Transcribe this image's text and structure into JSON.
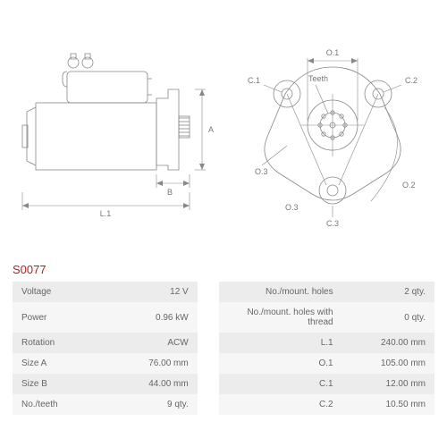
{
  "part_number": "S0077",
  "diagram": {
    "side_view": {
      "dim_labels": {
        "A": "A",
        "B": "B",
        "L1": "L.1"
      }
    },
    "front_view": {
      "dim_labels": {
        "O1": "O.1",
        "O2": "O.2",
        "O3": "O.3",
        "O3b": "O.3",
        "C1": "C.1",
        "C2": "C.2",
        "C3": "C.3",
        "teeth": "Teeth"
      }
    },
    "line_color": "#888888",
    "text_color": "#777777"
  },
  "specs": {
    "rows": [
      {
        "l1": "Voltage",
        "v1": "12 V",
        "l2": "No./mount. holes",
        "v2": "2 qty."
      },
      {
        "l1": "Power",
        "v1": "0.96 kW",
        "l2": "No./mount. holes with thread",
        "v2": "0 qty."
      },
      {
        "l1": "Rotation",
        "v1": "ACW",
        "l2": "L.1",
        "v2": "240.00 mm"
      },
      {
        "l1": "Size A",
        "v1": "76.00 mm",
        "l2": "O.1",
        "v2": "105.00 mm"
      },
      {
        "l1": "Size B",
        "v1": "44.00 mm",
        "l2": "C.1",
        "v2": "12.00 mm"
      },
      {
        "l1": "No./teeth",
        "v1": "9 qty.",
        "l2": "C.2",
        "v2": "10.50 mm"
      }
    ]
  }
}
